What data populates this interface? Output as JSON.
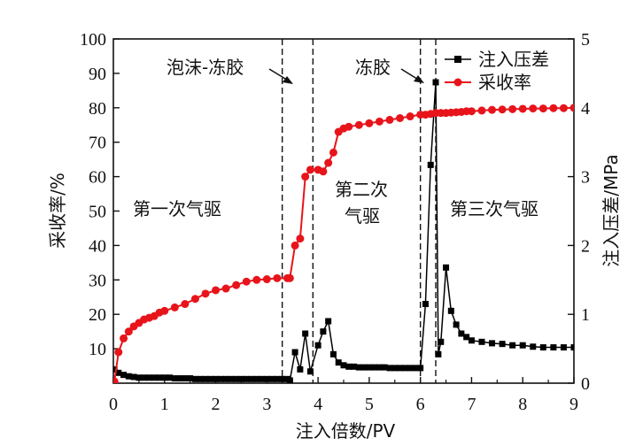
{
  "chart_data": {
    "type": "line",
    "xlabel": "注入倍数/PV",
    "ylabel_left": "采收率/%",
    "ylabel_right": "注入压差/MPa",
    "xlim": [
      0,
      9
    ],
    "ylim_left": [
      0,
      100
    ],
    "ylim_right": [
      0,
      5
    ],
    "x_ticks": [
      "0",
      "1",
      "2",
      "3",
      "4",
      "5",
      "6",
      "7",
      "8",
      "9"
    ],
    "y_left_ticks": [
      "10",
      "20",
      "30",
      "40",
      "50",
      "60",
      "70",
      "80",
      "90",
      "100"
    ],
    "y_right_ticks": [
      "0",
      "1",
      "2",
      "3",
      "4",
      "5"
    ],
    "legend_position": "top-right",
    "series": [
      {
        "name": "注入压差",
        "axis": "right",
        "color": "#000000",
        "marker": "square",
        "x": [
          0.02,
          0.1,
          0.2,
          0.3,
          0.4,
          0.5,
          0.6,
          0.7,
          0.8,
          0.9,
          1.0,
          1.1,
          1.2,
          1.3,
          1.4,
          1.5,
          1.6,
          1.7,
          1.8,
          1.9,
          2.0,
          2.1,
          2.2,
          2.3,
          2.4,
          2.5,
          2.6,
          2.7,
          2.8,
          2.9,
          3.0,
          3.1,
          3.2,
          3.3,
          3.4,
          3.45,
          3.55,
          3.65,
          3.75,
          3.85,
          4.0,
          4.1,
          4.2,
          4.3,
          4.4,
          4.5,
          4.6,
          4.7,
          4.8,
          4.9,
          5.0,
          5.1,
          5.2,
          5.3,
          5.4,
          5.5,
          5.6,
          5.7,
          5.8,
          5.9,
          6.0,
          6.1,
          6.2,
          6.3,
          6.35,
          6.4,
          6.5,
          6.6,
          6.7,
          6.8,
          6.9,
          7.0,
          7.2,
          7.4,
          7.6,
          7.8,
          8.0,
          8.2,
          8.4,
          8.6,
          8.8,
          9.0
        ],
        "y": [
          0.2,
          0.15,
          0.12,
          0.1,
          0.09,
          0.08,
          0.08,
          0.08,
          0.08,
          0.08,
          0.08,
          0.08,
          0.07,
          0.07,
          0.07,
          0.07,
          0.06,
          0.06,
          0.06,
          0.06,
          0.06,
          0.06,
          0.06,
          0.06,
          0.06,
          0.06,
          0.06,
          0.06,
          0.06,
          0.06,
          0.06,
          0.06,
          0.06,
          0.06,
          0.06,
          0.04,
          0.45,
          0.2,
          0.72,
          0.17,
          0.55,
          0.75,
          0.9,
          0.42,
          0.3,
          0.26,
          0.24,
          0.24,
          0.23,
          0.23,
          0.23,
          0.23,
          0.23,
          0.23,
          0.22,
          0.22,
          0.22,
          0.22,
          0.22,
          0.22,
          0.22,
          1.15,
          3.17,
          4.37,
          0.42,
          0.6,
          1.68,
          1.05,
          0.85,
          0.72,
          0.67,
          0.62,
          0.6,
          0.58,
          0.57,
          0.55,
          0.55,
          0.53,
          0.52,
          0.52,
          0.52,
          0.52
        ]
      },
      {
        "name": "采收率",
        "axis": "left",
        "color": "#e8141b",
        "marker": "circle",
        "x": [
          0.02,
          0.1,
          0.2,
          0.3,
          0.4,
          0.5,
          0.6,
          0.7,
          0.8,
          0.9,
          1.0,
          1.2,
          1.4,
          1.6,
          1.8,
          2.0,
          2.2,
          2.4,
          2.6,
          2.8,
          3.0,
          3.2,
          3.4,
          3.45,
          3.55,
          3.65,
          3.75,
          3.85,
          4.0,
          4.1,
          4.2,
          4.3,
          4.4,
          4.5,
          4.6,
          4.8,
          5.0,
          5.2,
          5.4,
          5.6,
          5.8,
          6.0,
          6.1,
          6.2,
          6.3,
          6.4,
          6.5,
          6.6,
          6.7,
          6.8,
          6.9,
          7.0,
          7.2,
          7.4,
          7.6,
          7.8,
          8.0,
          8.2,
          8.4,
          8.6,
          8.8,
          9.0
        ],
        "y": [
          0.5,
          9,
          13,
          15,
          16.5,
          17.5,
          18.5,
          19,
          19.5,
          20.5,
          21,
          22,
          23,
          24.5,
          26,
          27,
          27.5,
          28.5,
          29.5,
          30,
          30.2,
          30.5,
          30.5,
          30.5,
          40,
          42,
          60,
          62,
          62,
          61.5,
          64,
          67,
          73,
          74,
          74.5,
          75,
          75.5,
          76,
          76.5,
          77,
          77.5,
          78,
          78,
          78.2,
          78.5,
          78.5,
          78.5,
          78.6,
          78.7,
          78.8,
          79,
          79,
          79.2,
          79.4,
          79.5,
          79.6,
          79.7,
          79.8,
          79.8,
          79.9,
          79.9,
          80
        ]
      }
    ],
    "vlines": [
      3.3,
      3.9,
      6.0,
      6.3
    ],
    "annotations": [
      {
        "text": "泡沫-冻胶"
      },
      {
        "text": "冻胶"
      },
      {
        "text": "第一次气驱"
      },
      {
        "text": "第二次"
      },
      {
        "text": "气驱"
      },
      {
        "text": "第三次气驱"
      }
    ]
  }
}
